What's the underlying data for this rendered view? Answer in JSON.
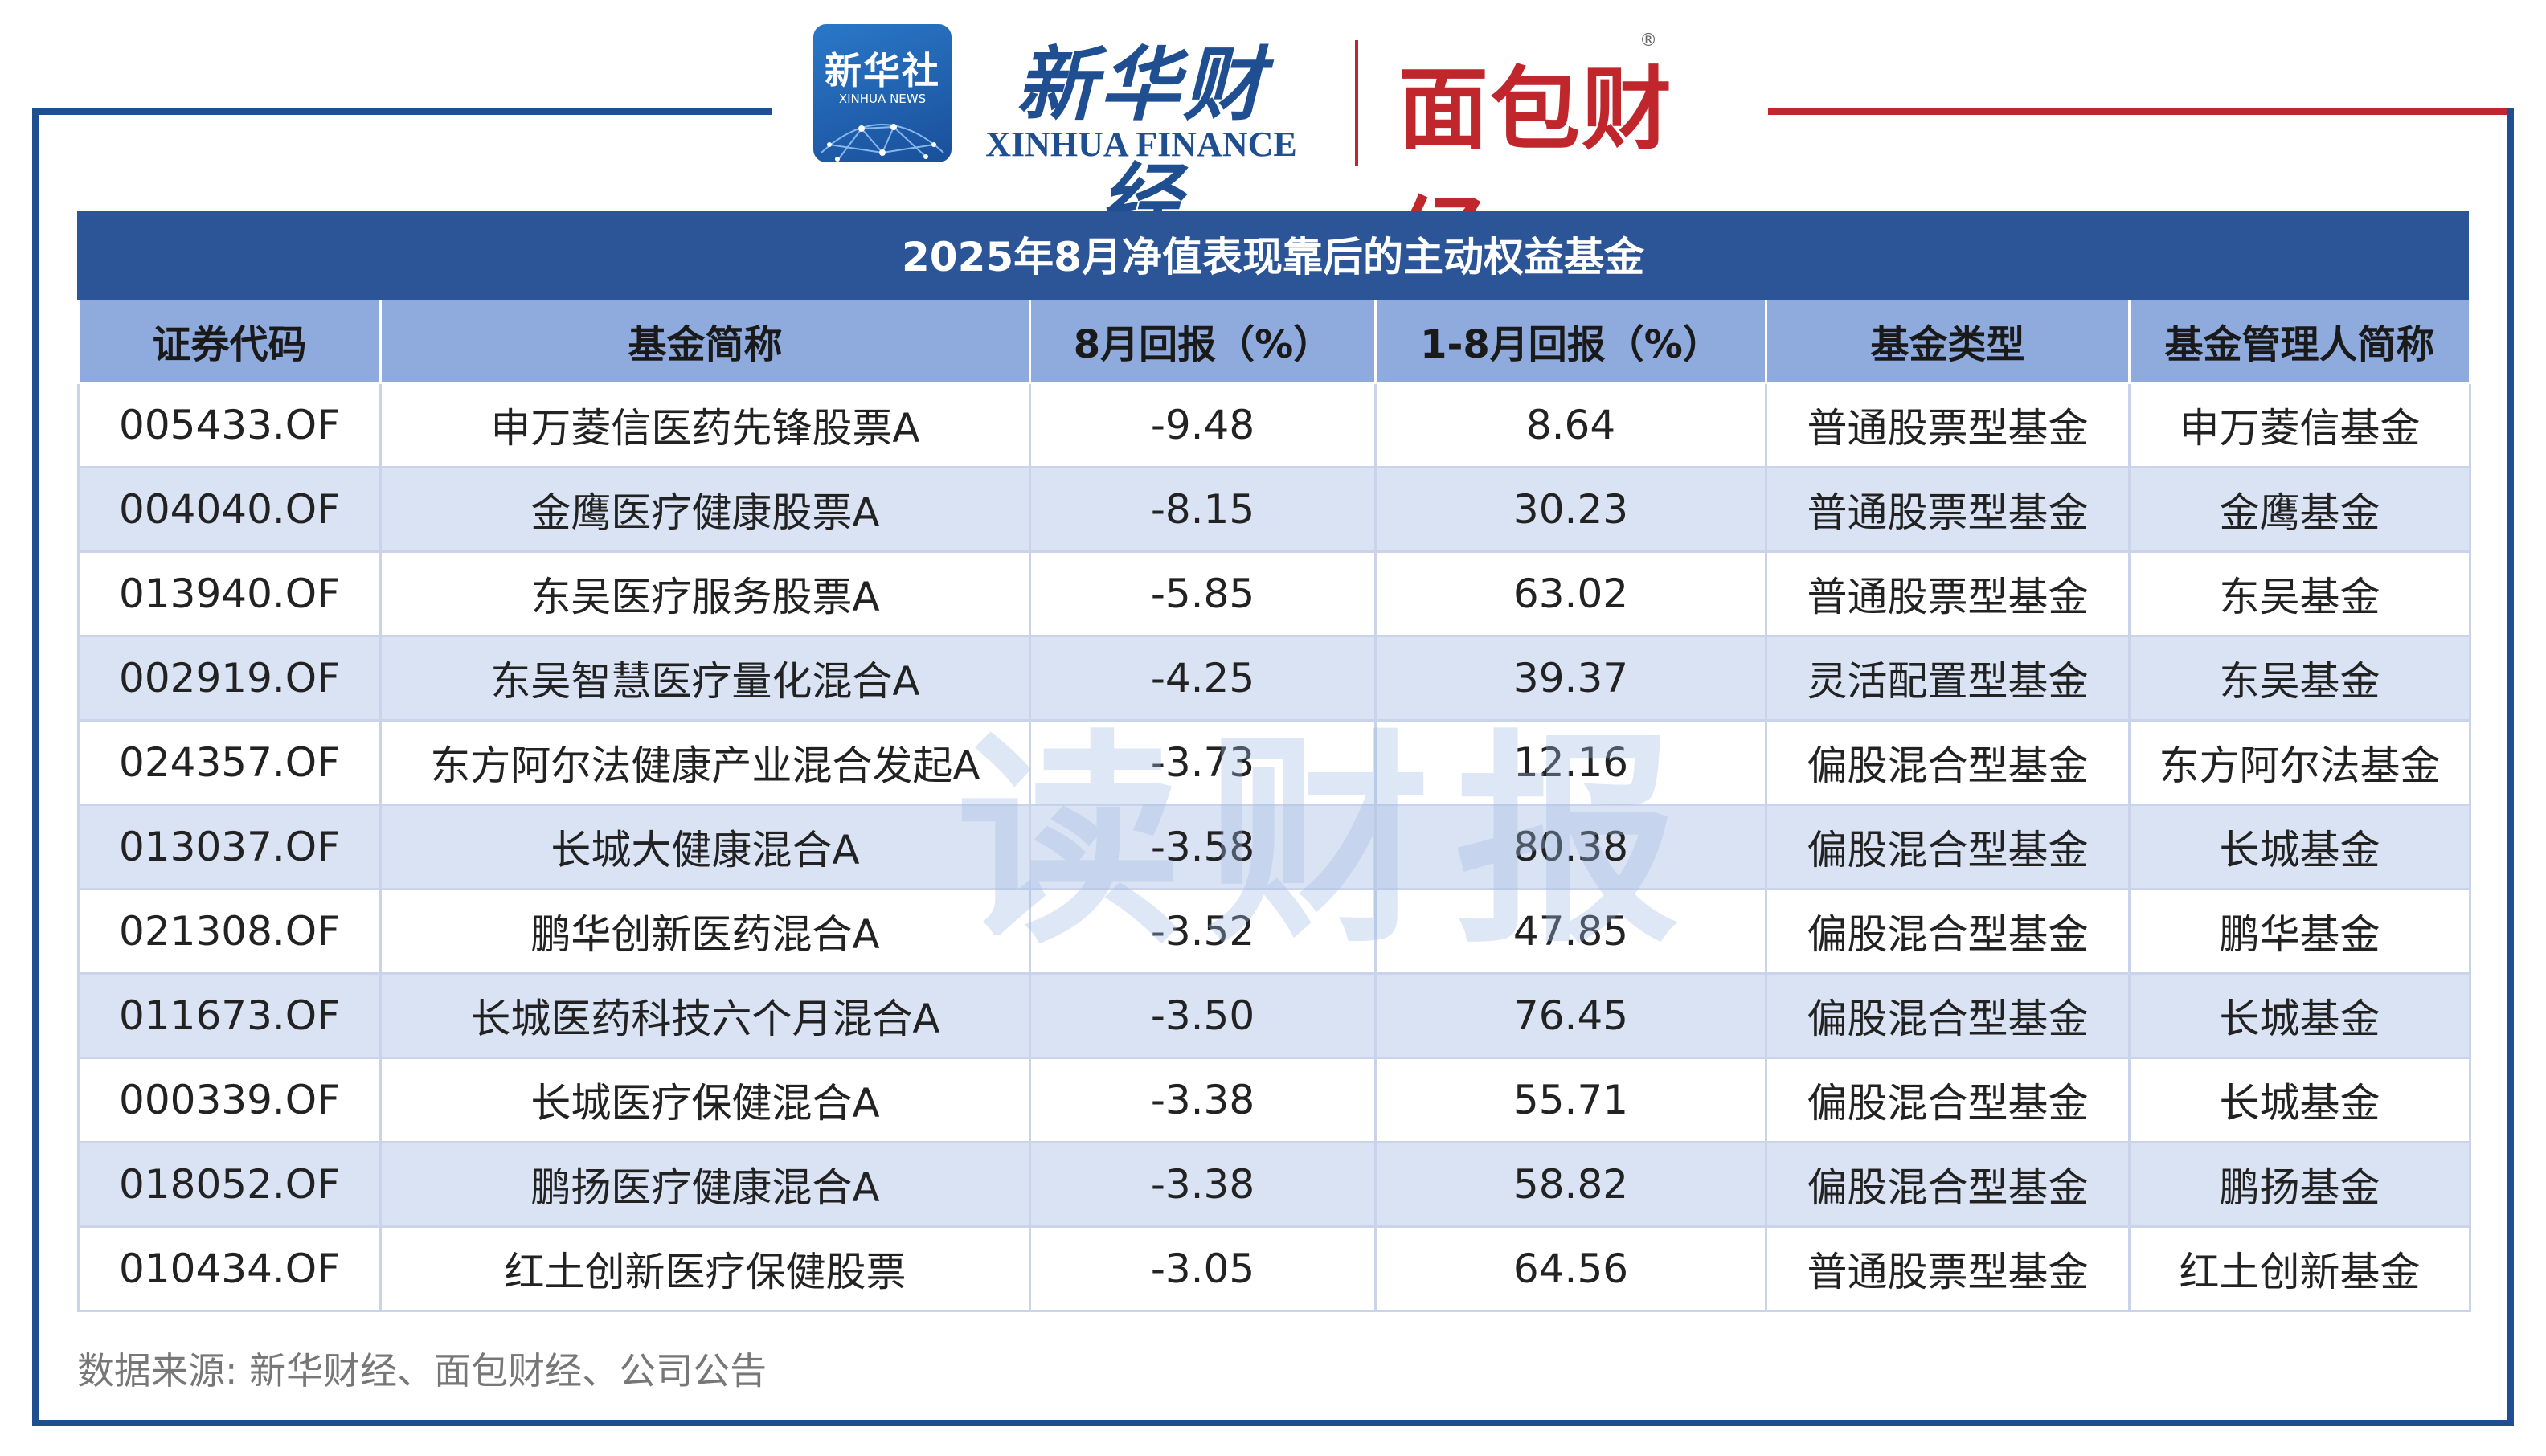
{
  "header": {
    "xinhua_badge_cn": "新华社",
    "xinhua_badge_en": "XINHUA NEWS",
    "xinhua_finance_cn": "新华财经",
    "xinhua_finance_en": "XINHUA FINANCE",
    "mianbao_cn": "面包财经",
    "mianbao_reg": "®"
  },
  "table": {
    "title": "2025年8月净值表现靠后的主动权益基金",
    "columns": [
      "证券代码",
      "基金简称",
      "8月回报（%）",
      "1-8月回报（%）",
      "基金类型",
      "基金管理人简称"
    ],
    "rows": [
      [
        "005433.OF",
        "申万菱信医药先锋股票A",
        "-9.48",
        "8.64",
        "普通股票型基金",
        "申万菱信基金"
      ],
      [
        "004040.OF",
        "金鹰医疗健康股票A",
        "-8.15",
        "30.23",
        "普通股票型基金",
        "金鹰基金"
      ],
      [
        "013940.OF",
        "东吴医疗服务股票A",
        "-5.85",
        "63.02",
        "普通股票型基金",
        "东吴基金"
      ],
      [
        "002919.OF",
        "东吴智慧医疗量化混合A",
        "-4.25",
        "39.37",
        "灵活配置型基金",
        "东吴基金"
      ],
      [
        "024357.OF",
        "东方阿尔法健康产业混合发起A",
        "-3.73",
        "12.16",
        "偏股混合型基金",
        "东方阿尔法基金"
      ],
      [
        "013037.OF",
        "长城大健康混合A",
        "-3.58",
        "80.38",
        "偏股混合型基金",
        "长城基金"
      ],
      [
        "021308.OF",
        "鹏华创新医药混合A",
        "-3.52",
        "47.85",
        "偏股混合型基金",
        "鹏华基金"
      ],
      [
        "011673.OF",
        "长城医药科技六个月混合A",
        "-3.50",
        "76.45",
        "偏股混合型基金",
        "长城基金"
      ],
      [
        "000339.OF",
        "长城医疗保健混合A",
        "-3.38",
        "55.71",
        "偏股混合型基金",
        "长城基金"
      ],
      [
        "018052.OF",
        "鹏扬医疗健康混合A",
        "-3.38",
        "58.82",
        "偏股混合型基金",
        "鹏扬基金"
      ],
      [
        "010434.OF",
        "红土创新医疗保健股票",
        "-3.05",
        "64.56",
        "普通股票型基金",
        "红土创新基金"
      ]
    ]
  },
  "watermark": "读财报",
  "source": "数据来源: 新华财经、面包财经、公司公告",
  "colors": {
    "title_bg": "#2c5597",
    "header_bg": "#8faadc",
    "stripe_bg": "#dae3f3",
    "frame_blue": "#1f4f91",
    "frame_red": "#c0272d"
  }
}
